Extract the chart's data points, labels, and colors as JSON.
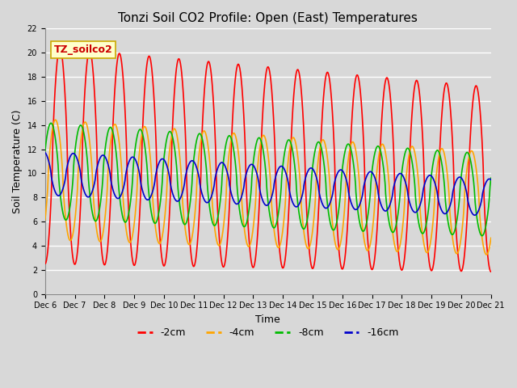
{
  "title": "Tonzi Soil CO2 Profile: Open (East) Temperatures",
  "xlabel": "Time",
  "ylabel": "Soil Temperature (C)",
  "watermark": "TZ_soilco2",
  "ylim": [
    0,
    22
  ],
  "xlim": [
    0,
    15
  ],
  "legend_labels": [
    "-2cm",
    "-4cm",
    "-8cm",
    "-16cm"
  ],
  "legend_colors": [
    "#ff0000",
    "#ffa500",
    "#00bb00",
    "#0000cc"
  ],
  "background_color": "#d8d8d8",
  "grid_color": "#ffffff",
  "x_start_day": 6,
  "num_days": 15,
  "n_points": 1500,
  "series": {
    "cm2": {
      "amp": 9.0,
      "mean": 11.5,
      "phase": 0.0,
      "color": "#ff0000",
      "lw": 1.2
    },
    "cm4": {
      "amp": 5.0,
      "mean": 9.5,
      "phase": 0.15,
      "color": "#ffa500",
      "lw": 1.2
    },
    "cm8": {
      "amp": 4.0,
      "mean": 10.2,
      "phase": 0.3,
      "color": "#00bb00",
      "lw": 1.2
    },
    "cm16": {
      "amp": 1.8,
      "mean": 10.0,
      "phase": 0.55,
      "color": "#0000cc",
      "lw": 1.2
    }
  },
  "tick_fontsize": 7,
  "label_fontsize": 9,
  "title_fontsize": 11
}
